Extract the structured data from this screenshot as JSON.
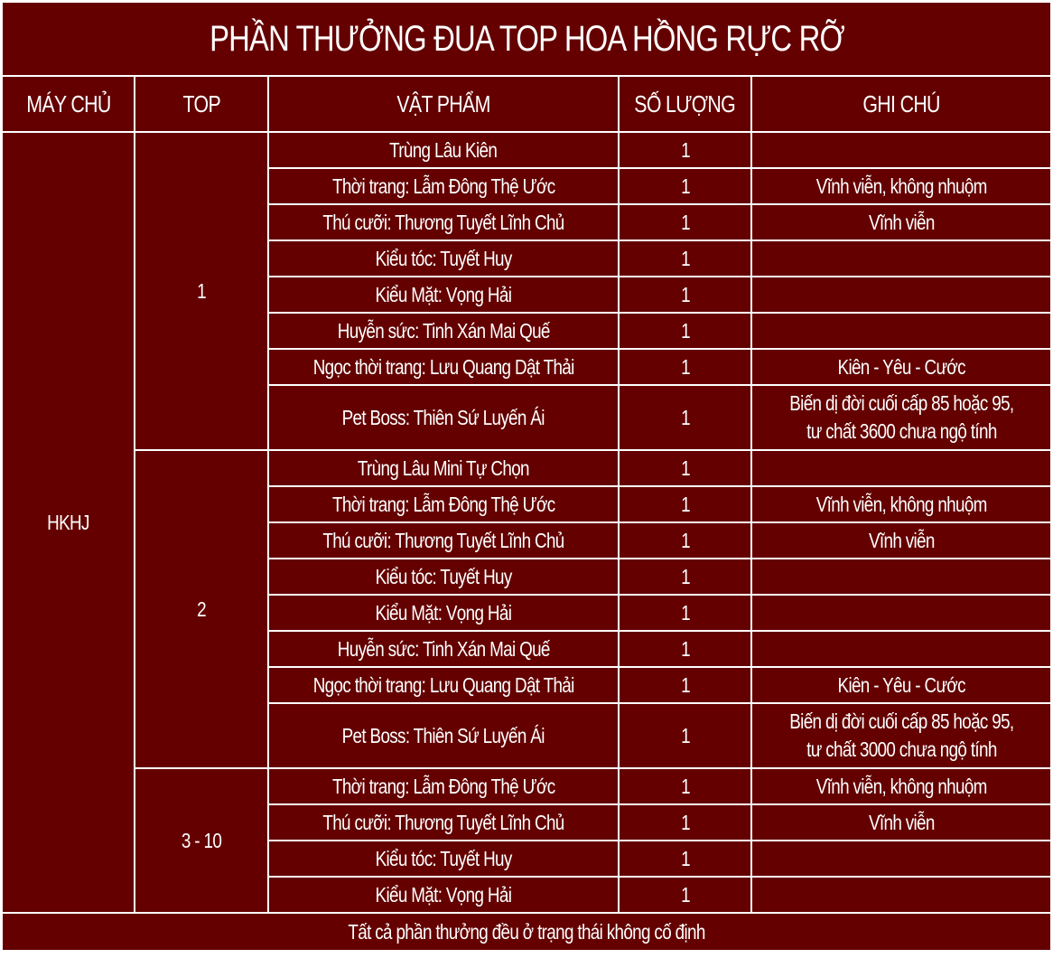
{
  "title": "PHẦN THƯỞNG ĐUA TOP HOA HỒNG RỰC RỠ",
  "columns": [
    "MÁY CHỦ",
    "TOP",
    "VẬT PHẨM",
    "SỐ LƯỢNG",
    "GHI CHÚ"
  ],
  "server": "HKHJ",
  "colors": {
    "background": "#640000",
    "border": "#ffffff",
    "text": "#ffffff"
  },
  "groups": [
    {
      "top": "1",
      "items": [
        {
          "item": "Trùng Lâu Kiên",
          "qty": "1",
          "note": ""
        },
        {
          "item": "Thời trang: Lẫm Đông Thệ Ước",
          "qty": "1",
          "note": "Vĩnh viễn, không nhuộm"
        },
        {
          "item": "Thú cưỡi: Thương Tuyết Lĩnh Chủ",
          "qty": "1",
          "note": "Vĩnh viễn"
        },
        {
          "item": "Kiểu tóc: Tuyết Huy",
          "qty": "1",
          "note": ""
        },
        {
          "item": "Kiểu Mặt: Vọng Hải",
          "qty": "1",
          "note": ""
        },
        {
          "item": "Huyễn sức: Tinh Xán Mai Quế",
          "qty": "1",
          "note": ""
        },
        {
          "item": "Ngọc thời trang: Lưu Quang Dật Thải",
          "qty": "1",
          "note": "Kiên - Yêu - Cước"
        },
        {
          "item": "Pet Boss: Thiên Sứ Luyến Ái",
          "qty": "1",
          "note": "Biến dị đời cuối cấp 85 hoặc 95,",
          "note2": "tư chất 3600 chưa ngộ tính"
        }
      ]
    },
    {
      "top": "2",
      "items": [
        {
          "item": "Trùng Lâu Mini Tự Chọn",
          "qty": "1",
          "note": ""
        },
        {
          "item": "Thời trang: Lẫm Đông Thệ Ước",
          "qty": "1",
          "note": "Vĩnh viễn, không nhuộm"
        },
        {
          "item": "Thú cưỡi: Thương Tuyết Lĩnh Chủ",
          "qty": "1",
          "note": "Vĩnh viễn"
        },
        {
          "item": "Kiểu tóc: Tuyết Huy",
          "qty": "1",
          "note": ""
        },
        {
          "item": "Kiểu Mặt: Vọng Hải",
          "qty": "1",
          "note": ""
        },
        {
          "item": "Huyễn sức: Tinh Xán Mai Quế",
          "qty": "1",
          "note": ""
        },
        {
          "item": "Ngọc thời trang: Lưu Quang Dật Thải",
          "qty": "1",
          "note": "Kiên - Yêu - Cước"
        },
        {
          "item": "Pet Boss: Thiên Sứ Luyến Ái",
          "qty": "1",
          "note": "Biến dị đời cuối cấp 85 hoặc 95,",
          "note2": "tư chất 3000 chưa ngộ tính"
        }
      ]
    },
    {
      "top": "3 - 10",
      "items": [
        {
          "item": "Thời trang: Lẫm Đông Thệ Ước",
          "qty": "1",
          "note": "Vĩnh viễn, không nhuộm"
        },
        {
          "item": "Thú cưỡi: Thương Tuyết Lĩnh Chủ",
          "qty": "1",
          "note": "Vĩnh viễn"
        },
        {
          "item": "Kiểu tóc: Tuyết Huy",
          "qty": "1",
          "note": ""
        },
        {
          "item": "Kiểu Mặt: Vọng Hải",
          "qty": "1",
          "note": ""
        }
      ]
    }
  ],
  "footer": "Tất cả phần thưởng đều ở trạng thái không cố định"
}
